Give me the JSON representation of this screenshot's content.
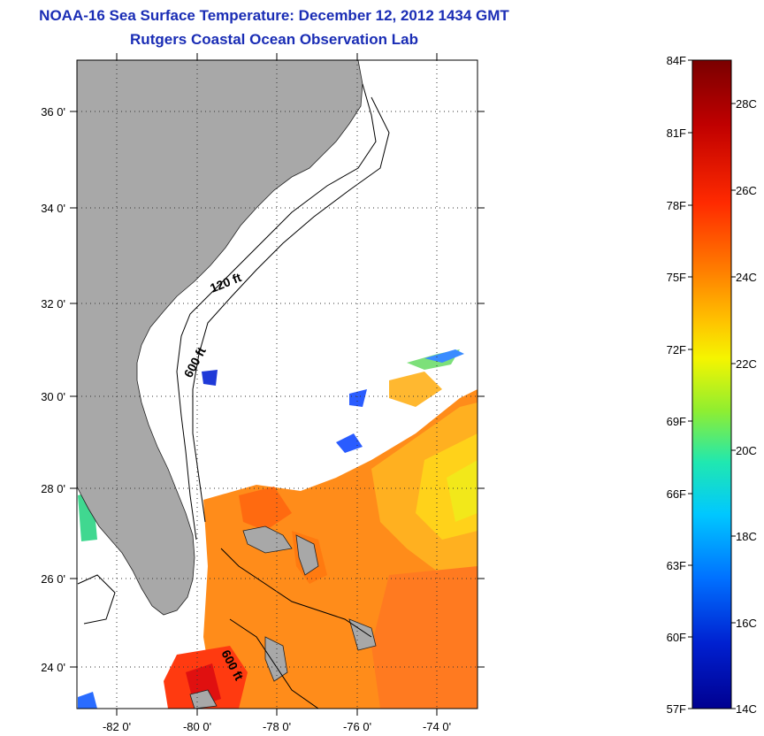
{
  "header": {
    "title": "NOAA-16 Sea Surface Temperature:  December 12, 2012 1434 GMT",
    "subtitle": "Rutgers Coastal Ocean Observation Lab"
  },
  "map": {
    "lon_ticks": [
      "-82 0'",
      "-80 0'",
      "-78 0'",
      "-76 0'",
      "-74 0'"
    ],
    "lat_ticks": [
      "36 0'",
      "34 0'",
      "32 0'",
      "30 0'",
      "28 0'",
      "26 0'",
      "24 0'"
    ],
    "lon_range": [
      -83,
      -73
    ],
    "lat_range": [
      23,
      37
    ],
    "contour_labels": [
      "120 ft",
      "600 ft",
      "600 ft"
    ],
    "land_color": "#a8a8a8",
    "grid": "dotted"
  },
  "colorbar": {
    "fahrenheit_labels": [
      "84F",
      "81F",
      "78F",
      "75F",
      "72F",
      "69F",
      "66F",
      "63F",
      "60F",
      "57F"
    ],
    "celsius_labels": [
      "28C",
      "26C",
      "24C",
      "22C",
      "20C",
      "18C",
      "16C",
      "14C"
    ],
    "colors": [
      "#7a0000",
      "#c00000",
      "#ff2a00",
      "#ff7a00",
      "#ffc000",
      "#f5f500",
      "#90ee30",
      "#20e8b0",
      "#00c8ff",
      "#0070ff",
      "#0020d0",
      "#000090"
    ]
  }
}
